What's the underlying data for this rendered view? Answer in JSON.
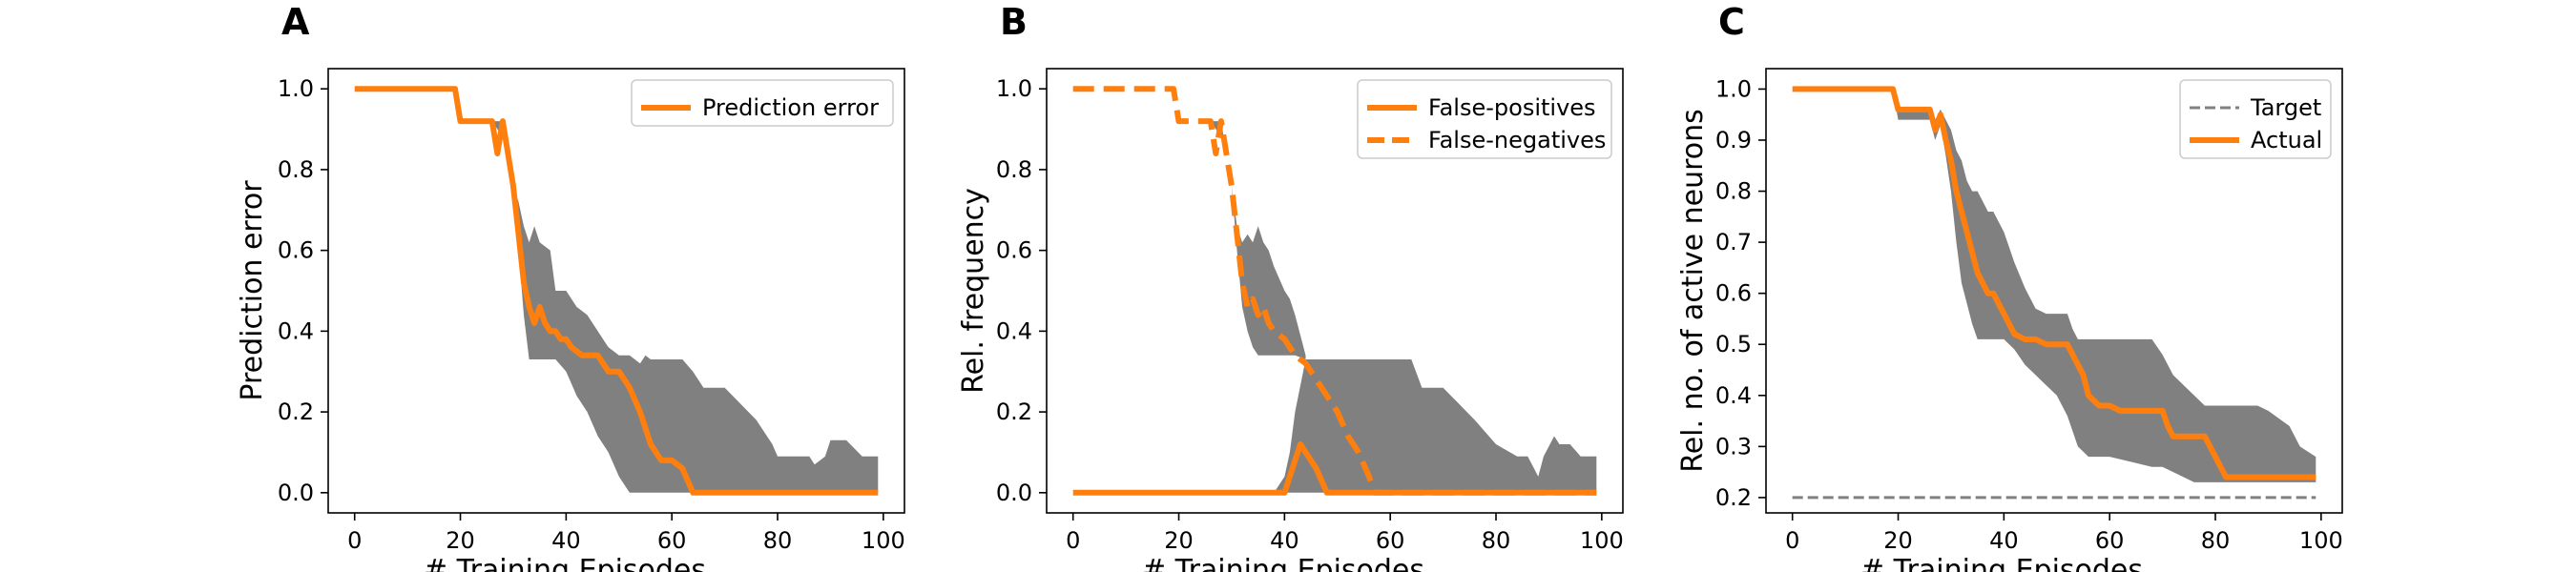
{
  "colors": {
    "actual": "#ff7f0e",
    "band": "#808080",
    "target": "#808080",
    "frame": "#000000"
  },
  "chart_data": [
    {
      "panel_label": "A",
      "type": "line",
      "title": "",
      "xlabel": "# Training Episodes",
      "ylabel": "Prediction error",
      "xlim": [
        -5,
        104
      ],
      "ylim": [
        -0.05,
        1.05
      ],
      "xticks": [
        0,
        20,
        40,
        60,
        80,
        100
      ],
      "yticks": [
        0.0,
        0.2,
        0.4,
        0.6,
        0.8,
        1.0
      ],
      "ytick_labels": [
        "0.0",
        "0.2",
        "0.4",
        "0.6",
        "0.8",
        "1.0"
      ],
      "grid": false,
      "legend_position": "top-right",
      "series": [
        {
          "name": "Prediction error",
          "style": "solid",
          "x": [
            0,
            19,
            20,
            26,
            27,
            28,
            29,
            30,
            31,
            32,
            33,
            34,
            35,
            36,
            37,
            38,
            39,
            40,
            41,
            43,
            46,
            48,
            50,
            52,
            54,
            56,
            58,
            60,
            62,
            64,
            70,
            80,
            90,
            99
          ],
          "y": [
            1.0,
            1.0,
            0.92,
            0.92,
            0.84,
            0.92,
            0.84,
            0.76,
            0.64,
            0.52,
            0.46,
            0.42,
            0.46,
            0.42,
            0.4,
            0.4,
            0.38,
            0.38,
            0.36,
            0.34,
            0.34,
            0.3,
            0.3,
            0.26,
            0.2,
            0.12,
            0.08,
            0.08,
            0.06,
            0.0,
            0.0,
            0.0,
            0.0,
            0.0
          ]
        }
      ],
      "band": {
        "x": [
          0,
          19,
          20,
          26,
          28,
          29,
          30,
          31,
          32,
          33,
          34,
          35,
          37,
          38,
          40,
          42,
          44,
          46,
          48,
          50,
          52,
          54,
          55,
          56,
          58,
          62,
          64,
          66,
          70,
          73,
          76,
          79,
          80,
          82,
          84,
          86,
          87,
          89,
          90,
          93,
          96,
          99
        ],
        "upper": [
          1.0,
          1.0,
          0.92,
          0.92,
          0.92,
          0.84,
          0.76,
          0.72,
          0.66,
          0.62,
          0.66,
          0.62,
          0.6,
          0.5,
          0.5,
          0.46,
          0.44,
          0.4,
          0.36,
          0.34,
          0.34,
          0.32,
          0.34,
          0.33,
          0.33,
          0.33,
          0.3,
          0.26,
          0.26,
          0.22,
          0.18,
          0.12,
          0.09,
          0.09,
          0.09,
          0.09,
          0.07,
          0.09,
          0.13,
          0.13,
          0.09,
          0.09
        ],
        "lower": [
          1.0,
          1.0,
          0.92,
          0.92,
          0.88,
          0.84,
          0.76,
          0.6,
          0.44,
          0.33,
          0.33,
          0.33,
          0.33,
          0.33,
          0.3,
          0.24,
          0.2,
          0.14,
          0.1,
          0.04,
          0.0,
          0.0,
          0.0,
          0.0,
          0.0,
          0.0,
          0.0,
          0.0,
          0.0,
          0.0,
          0.0,
          0.0,
          0.0,
          0.0,
          0.0,
          0.0,
          0.0,
          0.0,
          0.0,
          0.0,
          0.0,
          0.0
        ]
      }
    },
    {
      "panel_label": "B",
      "type": "line",
      "title": "",
      "xlabel": "# Training Episodes",
      "ylabel": "Rel. frequency",
      "xlim": [
        -5,
        104
      ],
      "ylim": [
        -0.05,
        1.05
      ],
      "xticks": [
        0,
        20,
        40,
        60,
        80,
        100
      ],
      "yticks": [
        0.0,
        0.2,
        0.4,
        0.6,
        0.8,
        1.0
      ],
      "ytick_labels": [
        "0.0",
        "0.2",
        "0.4",
        "0.6",
        "0.8",
        "1.0"
      ],
      "grid": false,
      "legend_position": "top-right",
      "series": [
        {
          "name": "False-positives",
          "style": "solid",
          "x": [
            0,
            38,
            40,
            42,
            43,
            44,
            46,
            48,
            50,
            60,
            80,
            99
          ],
          "y": [
            0.0,
            0.0,
            0.0,
            0.08,
            0.12,
            0.1,
            0.06,
            0.0,
            0.0,
            0.0,
            0.0,
            0.0
          ]
        },
        {
          "name": "False-negatives",
          "style": "dashed",
          "x": [
            0,
            19,
            20,
            26,
            27,
            28,
            29,
            30,
            31,
            32,
            33,
            34,
            35,
            36,
            37,
            38,
            40,
            42,
            44,
            46,
            48,
            50,
            52,
            54,
            56,
            57,
            60,
            80,
            99
          ],
          "y": [
            1.0,
            1.0,
            0.92,
            0.92,
            0.84,
            0.92,
            0.84,
            0.76,
            0.64,
            0.52,
            0.46,
            0.48,
            0.44,
            0.46,
            0.42,
            0.4,
            0.38,
            0.34,
            0.32,
            0.28,
            0.24,
            0.2,
            0.14,
            0.1,
            0.04,
            0.0,
            0.0,
            0.0,
            0.0
          ]
        }
      ],
      "band": {
        "x": [
          0,
          38,
          40,
          41,
          42,
          44,
          46,
          48,
          50,
          55,
          60,
          64,
          66,
          70,
          73,
          76,
          80,
          84,
          86,
          88,
          89,
          91,
          92,
          94,
          96,
          99
        ],
        "upper": [
          0.0,
          0.0,
          0.04,
          0.1,
          0.2,
          0.33,
          0.33,
          0.33,
          0.33,
          0.33,
          0.33,
          0.33,
          0.26,
          0.26,
          0.22,
          0.18,
          0.12,
          0.09,
          0.09,
          0.04,
          0.09,
          0.14,
          0.12,
          0.12,
          0.09,
          0.09
        ],
        "lower": [
          0.0,
          0.0,
          0.0,
          0.0,
          0.0,
          0.0,
          0.0,
          0.0,
          0.0,
          0.0,
          0.0,
          0.0,
          0.0,
          0.0,
          0.0,
          0.0,
          0.0,
          0.0,
          0.0,
          0.0,
          0.0,
          0.0,
          0.0,
          0.0,
          0.0,
          0.0
        ]
      },
      "band2": {
        "x": [
          26,
          28,
          29,
          30,
          31,
          32,
          33,
          34,
          35,
          36,
          37,
          38,
          40,
          41,
          42,
          44
        ],
        "upper": [
          0.92,
          0.92,
          0.84,
          0.76,
          0.66,
          0.62,
          0.64,
          0.62,
          0.66,
          0.62,
          0.6,
          0.56,
          0.5,
          0.48,
          0.44,
          0.34
        ],
        "lower": [
          0.92,
          0.88,
          0.84,
          0.76,
          0.6,
          0.46,
          0.4,
          0.36,
          0.34,
          0.34,
          0.34,
          0.34,
          0.34,
          0.34,
          0.34,
          0.33
        ]
      }
    },
    {
      "panel_label": "C",
      "type": "line",
      "title": "",
      "xlabel": "# Training Episodes",
      "ylabel": "Rel. no. of active neurons",
      "xlim": [
        -5,
        104
      ],
      "ylim": [
        0.17,
        1.04
      ],
      "xticks": [
        0,
        20,
        40,
        60,
        80,
        100
      ],
      "yticks": [
        0.2,
        0.3,
        0.4,
        0.5,
        0.6,
        0.7,
        0.8,
        0.9,
        1.0
      ],
      "ytick_labels": [
        "0.2",
        "0.3",
        "0.4",
        "0.5",
        "0.6",
        "0.7",
        "0.8",
        "0.9",
        "1.0"
      ],
      "grid": false,
      "legend_position": "top-right",
      "series": [
        {
          "name": "Target",
          "style": "dashed-thin",
          "x": [
            0,
            99
          ],
          "y": [
            0.2,
            0.2
          ]
        },
        {
          "name": "Actual",
          "style": "solid",
          "x": [
            0,
            19,
            20,
            26,
            27,
            28,
            29,
            30,
            31,
            32,
            33,
            34,
            35,
            36,
            37,
            38,
            40,
            42,
            44,
            46,
            48,
            50,
            52,
            53,
            55,
            56,
            58,
            60,
            62,
            64,
            66,
            68,
            70,
            71,
            72,
            76,
            78,
            80,
            82,
            90,
            99
          ],
          "y": [
            1.0,
            1.0,
            0.96,
            0.96,
            0.92,
            0.95,
            0.9,
            0.86,
            0.8,
            0.76,
            0.72,
            0.68,
            0.64,
            0.62,
            0.6,
            0.6,
            0.56,
            0.52,
            0.51,
            0.51,
            0.5,
            0.5,
            0.5,
            0.48,
            0.44,
            0.4,
            0.38,
            0.38,
            0.37,
            0.37,
            0.37,
            0.37,
            0.37,
            0.34,
            0.32,
            0.32,
            0.32,
            0.28,
            0.24,
            0.24,
            0.24
          ]
        }
      ],
      "band": {
        "x": [
          0,
          19,
          20,
          26,
          27,
          28,
          29,
          30,
          31,
          32,
          33,
          34,
          35,
          36,
          37,
          38,
          40,
          42,
          44,
          46,
          48,
          50,
          52,
          53,
          54,
          55,
          56,
          58,
          60,
          64,
          68,
          70,
          72,
          74,
          76,
          78,
          80,
          82,
          84,
          88,
          90,
          94,
          96,
          99
        ],
        "upper": [
          1.0,
          1.0,
          0.96,
          0.96,
          0.94,
          0.96,
          0.94,
          0.92,
          0.88,
          0.86,
          0.82,
          0.8,
          0.8,
          0.78,
          0.76,
          0.76,
          0.72,
          0.66,
          0.61,
          0.57,
          0.56,
          0.56,
          0.56,
          0.53,
          0.51,
          0.51,
          0.51,
          0.51,
          0.51,
          0.51,
          0.51,
          0.48,
          0.44,
          0.42,
          0.4,
          0.38,
          0.38,
          0.38,
          0.38,
          0.38,
          0.37,
          0.34,
          0.3,
          0.28
        ],
        "lower": [
          1.0,
          1.0,
          0.94,
          0.94,
          0.9,
          0.93,
          0.87,
          0.8,
          0.7,
          0.62,
          0.58,
          0.54,
          0.51,
          0.51,
          0.51,
          0.51,
          0.51,
          0.49,
          0.46,
          0.44,
          0.42,
          0.4,
          0.36,
          0.33,
          0.3,
          0.29,
          0.28,
          0.28,
          0.28,
          0.27,
          0.26,
          0.26,
          0.25,
          0.24,
          0.23,
          0.23,
          0.23,
          0.23,
          0.23,
          0.23,
          0.23,
          0.23,
          0.23,
          0.23
        ]
      }
    }
  ]
}
